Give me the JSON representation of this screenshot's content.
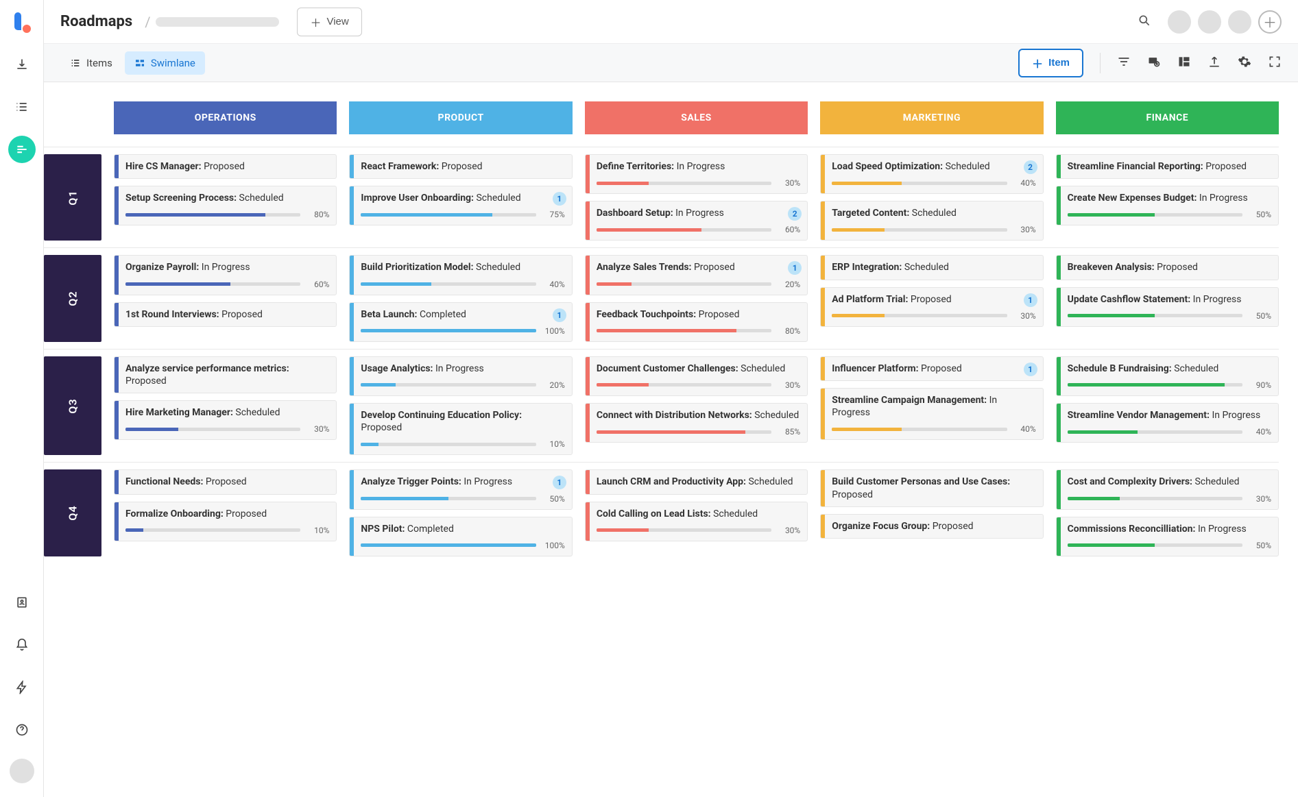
{
  "header": {
    "title": "Roadmaps",
    "view_button": "View"
  },
  "toolbar": {
    "items_tab": "Items",
    "swimlane_tab": "Swimlane",
    "add_item": "Item"
  },
  "columns": [
    {
      "label": "OPERATIONS",
      "color": "#4a66b8"
    },
    {
      "label": "PRODUCT",
      "color": "#4fb2e5"
    },
    {
      "label": "SALES",
      "color": "#f07167"
    },
    {
      "label": "MARKETING",
      "color": "#f2b33d"
    },
    {
      "label": "FINANCE",
      "color": "#2fb457"
    }
  ],
  "rows": [
    {
      "label": "Q1",
      "cells": [
        [
          {
            "title": "Hire CS Manager:",
            "status": "Proposed"
          },
          {
            "title": "Setup Screening Process:",
            "status": "Scheduled",
            "progress": 80
          }
        ],
        [
          {
            "title": "React Framework:",
            "status": "Proposed"
          },
          {
            "title": "Improve User Onboarding:",
            "status": "Scheduled",
            "progress": 75,
            "badge": 1
          }
        ],
        [
          {
            "title": "Define Territories:",
            "status": "In Progress",
            "progress": 30
          },
          {
            "title": "Dashboard Setup:",
            "status": "In Progress",
            "progress": 60,
            "badge": 2
          }
        ],
        [
          {
            "title": "Load Speed Optimization:",
            "status": "Scheduled",
            "progress": 40,
            "badge": 2
          },
          {
            "title": "Targeted Content:",
            "status": "Scheduled",
            "progress": 30
          }
        ],
        [
          {
            "title": "Streamline Financial Reporting:",
            "status": "Proposed"
          },
          {
            "title": "Create New Expenses Budget:",
            "status": "In Progress",
            "progress": 50
          }
        ]
      ]
    },
    {
      "label": "Q2",
      "cells": [
        [
          {
            "title": "Organize Payroll:",
            "status": "In Progress",
            "progress": 60
          },
          {
            "title": "1st Round Interviews:",
            "status": "Proposed"
          }
        ],
        [
          {
            "title": "Build Prioritization Model:",
            "status": "Scheduled",
            "progress": 40
          },
          {
            "title": "Beta Launch:",
            "status": "Completed",
            "progress": 100,
            "badge": 1
          }
        ],
        [
          {
            "title": "Analyze Sales Trends:",
            "status": "Proposed",
            "progress": 20,
            "badge": 1
          },
          {
            "title": "Feedback Touchpoints:",
            "status": "Proposed",
            "progress": 80
          }
        ],
        [
          {
            "title": "ERP Integration:",
            "status": "Scheduled"
          },
          {
            "title": "Ad Platform Trial:",
            "status": "Proposed",
            "progress": 30,
            "badge": 1
          }
        ],
        [
          {
            "title": "Breakeven Analysis:",
            "status": "Proposed"
          },
          {
            "title": "Update Cashflow Statement:",
            "status": "In Progress",
            "progress": 50
          }
        ]
      ]
    },
    {
      "label": "Q3",
      "cells": [
        [
          {
            "title": "Analyze service performance metrics:",
            "status": "Proposed"
          },
          {
            "title": "Hire Marketing Manager:",
            "status": "Scheduled",
            "progress": 30
          }
        ],
        [
          {
            "title": "Usage Analytics:",
            "status": "In Progress",
            "progress": 20
          },
          {
            "title": "Develop Continuing Education Policy:",
            "status": "Proposed",
            "progress": 10
          }
        ],
        [
          {
            "title": "Document Customer Challenges:",
            "status": "Scheduled",
            "progress": 30
          },
          {
            "title": "Connect with Distribution Networks:",
            "status": "Scheduled",
            "progress": 85
          }
        ],
        [
          {
            "title": "Influencer Platform:",
            "status": "Proposed",
            "badge": 1
          },
          {
            "title": "Streamline Campaign Management:",
            "status": "In Progress",
            "progress": 40
          }
        ],
        [
          {
            "title": "Schedule B Fundraising:",
            "status": "Scheduled",
            "progress": 90
          },
          {
            "title": "Streamline Vendor Management:",
            "status": "In Progress",
            "progress": 40
          }
        ]
      ]
    },
    {
      "label": "Q4",
      "cells": [
        [
          {
            "title": "Functional Needs:",
            "status": "Proposed"
          },
          {
            "title": "Formalize Onboarding:",
            "status": "Proposed",
            "progress": 10
          }
        ],
        [
          {
            "title": "Analyze Trigger Points:",
            "status": "In Progress",
            "progress": 50,
            "badge": 1
          },
          {
            "title": "NPS Pilot:",
            "status": "Completed",
            "progress": 100
          }
        ],
        [
          {
            "title": "Launch CRM and Productivity App:",
            "status": "Scheduled"
          },
          {
            "title": "Cold Calling on Lead Lists:",
            "status": "Scheduled",
            "progress": 30
          }
        ],
        [
          {
            "title": "Build Customer Personas and Use Cases:",
            "status": "Proposed"
          },
          {
            "title": "Organize Focus Group:",
            "status": "Proposed"
          }
        ],
        [
          {
            "title": "Cost and Complexity Drivers:",
            "status": "Scheduled",
            "progress": 30
          },
          {
            "title": "Commissions Reconcilliation:",
            "status": "In Progress",
            "progress": 50
          }
        ]
      ]
    }
  ]
}
